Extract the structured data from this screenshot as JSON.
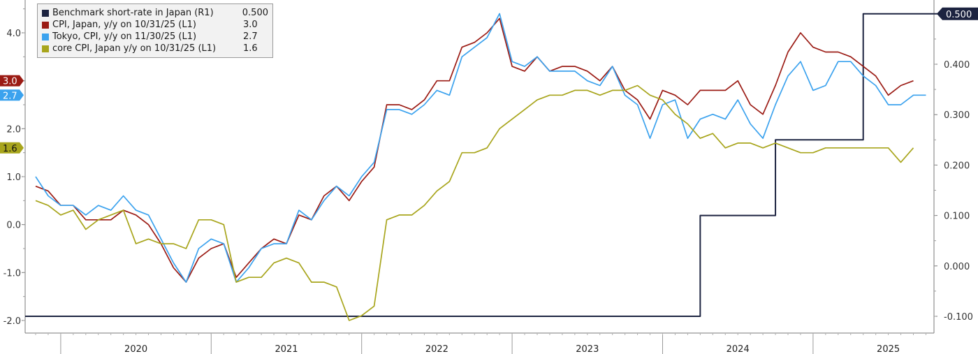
{
  "legend": [
    {
      "label": "Benchmark short-rate in Japan (R1)",
      "value": "0.500",
      "color": "#1c2340"
    },
    {
      "label": "CPI, Japan, y/y on 10/31/25 (L1)",
      "value": "3.0",
      "color": "#9b1b14"
    },
    {
      "label": "Tokyo, CPI, y/y on 11/30/25 (L1)",
      "value": "2.7",
      "color": "#3ba2ee"
    },
    {
      "label": "core CPI, Japan y/y on 10/31/25 (L1)",
      "value": "1.6",
      "color": "#a8a51c"
    }
  ],
  "chart_data": {
    "type": "line",
    "x_start": "2019-11",
    "x_freq": "monthly",
    "x_tick_labels": [
      "2020",
      "2021",
      "2022",
      "2023",
      "2024",
      "2025"
    ],
    "y_left": {
      "ticks": [
        "4.0",
        "3.0",
        "2.0",
        "1.0",
        "0.0",
        "-1.0",
        "-2.0"
      ],
      "range": [
        -2.0,
        4.6
      ]
    },
    "y_right": {
      "ticks": [
        "0.400",
        "0.300",
        "0.200",
        "0.100",
        "0.000",
        "-0.100"
      ],
      "range": [
        -0.1,
        0.52
      ]
    },
    "grid": false,
    "legend_position": "top-left",
    "series": [
      {
        "name": "Benchmark short-rate in Japan (R1)",
        "axis": "right",
        "color": "#1c2340",
        "last_value_label": "0.500",
        "values": [
          -0.1,
          -0.1,
          -0.1,
          -0.1,
          -0.1,
          -0.1,
          -0.1,
          -0.1,
          -0.1,
          -0.1,
          -0.1,
          -0.1,
          -0.1,
          -0.1,
          -0.1,
          -0.1,
          -0.1,
          -0.1,
          -0.1,
          -0.1,
          -0.1,
          -0.1,
          -0.1,
          -0.1,
          -0.1,
          -0.1,
          -0.1,
          -0.1,
          -0.1,
          -0.1,
          -0.1,
          -0.1,
          -0.1,
          -0.1,
          -0.1,
          -0.1,
          -0.1,
          -0.1,
          -0.1,
          -0.1,
          -0.1,
          -0.1,
          -0.1,
          -0.1,
          -0.1,
          -0.1,
          -0.1,
          -0.1,
          -0.1,
          -0.1,
          -0.1,
          -0.1,
          -0.1,
          0.1,
          0.1,
          0.1,
          0.1,
          0.1,
          0.1,
          0.25,
          0.25,
          0.25,
          0.25,
          0.25,
          0.25,
          0.25,
          0.5,
          0.5,
          0.5,
          0.5,
          0.5,
          0.5,
          0.5,
          0.5,
          0.5,
          0.5,
          0.5,
          0.5,
          0.5,
          0.5,
          0.5,
          0.5,
          0.5
        ]
      },
      {
        "name": "CPI, Japan, y/y on 10/31/25 (L1)",
        "axis": "left",
        "color": "#9b1b14",
        "last_value_label": "3.0",
        "values": [
          0.8,
          0.7,
          0.4,
          0.4,
          0.1,
          0.1,
          0.1,
          0.3,
          0.2,
          0.0,
          -0.4,
          -0.9,
          -1.2,
          -0.7,
          -0.5,
          -0.4,
          -1.1,
          -0.8,
          -0.5,
          -0.3,
          -0.4,
          0.2,
          0.1,
          0.6,
          0.8,
          0.5,
          0.9,
          1.2,
          2.5,
          2.5,
          2.4,
          2.6,
          3.0,
          3.0,
          3.7,
          3.8,
          4.0,
          4.3,
          3.3,
          3.2,
          3.5,
          3.2,
          3.3,
          3.3,
          3.2,
          3.0,
          3.3,
          2.8,
          2.6,
          2.2,
          2.8,
          2.7,
          2.5,
          2.8,
          2.8,
          2.8,
          3.0,
          2.5,
          2.3,
          2.9,
          3.6,
          4.0,
          3.7,
          3.6,
          3.6,
          3.5,
          3.3,
          3.1,
          2.7,
          2.9,
          3.0
        ]
      },
      {
        "name": "Tokyo, CPI, y/y on 11/30/25 (L1)",
        "axis": "left",
        "color": "#3ba2ee",
        "last_value_label": "2.7",
        "values": [
          1.0,
          0.6,
          0.4,
          0.4,
          0.2,
          0.4,
          0.3,
          0.6,
          0.3,
          0.2,
          -0.3,
          -0.8,
          -1.2,
          -0.5,
          -0.3,
          -0.4,
          -1.2,
          -0.9,
          -0.5,
          -0.4,
          -0.4,
          0.3,
          0.1,
          0.5,
          0.8,
          0.6,
          1.0,
          1.3,
          2.4,
          2.4,
          2.3,
          2.5,
          2.8,
          2.7,
          3.5,
          3.7,
          3.9,
          4.4,
          3.4,
          3.3,
          3.5,
          3.2,
          3.2,
          3.2,
          3.0,
          2.9,
          3.3,
          2.7,
          2.5,
          1.8,
          2.5,
          2.6,
          1.8,
          2.2,
          2.3,
          2.2,
          2.6,
          2.1,
          1.8,
          2.5,
          3.1,
          3.4,
          2.8,
          2.9,
          3.4,
          3.4,
          3.1,
          2.9,
          2.5,
          2.5,
          2.7,
          2.7
        ]
      },
      {
        "name": "core CPI, Japan y/y on 10/31/25 (L1)",
        "axis": "left",
        "color": "#a8a51c",
        "last_value_label": "1.6",
        "values": [
          0.5,
          0.4,
          0.2,
          0.3,
          -0.1,
          0.1,
          0.2,
          0.3,
          -0.4,
          -0.3,
          -0.4,
          -0.4,
          -0.5,
          0.1,
          0.1,
          0.0,
          -1.2,
          -1.1,
          -1.1,
          -0.8,
          -0.7,
          -0.8,
          -1.2,
          -1.2,
          -1.3,
          -2.0,
          -1.9,
          -1.7,
          0.1,
          0.2,
          0.2,
          0.4,
          0.7,
          0.9,
          1.5,
          1.5,
          1.6,
          2.0,
          2.2,
          2.4,
          2.6,
          2.7,
          2.7,
          2.8,
          2.8,
          2.7,
          2.8,
          2.8,
          2.9,
          2.7,
          2.6,
          2.3,
          2.1,
          1.8,
          1.9,
          1.6,
          1.7,
          1.7,
          1.6,
          1.7,
          1.6,
          1.5,
          1.5,
          1.6,
          1.6,
          1.6,
          1.6,
          1.6,
          1.6,
          1.3,
          1.6
        ]
      }
    ]
  }
}
